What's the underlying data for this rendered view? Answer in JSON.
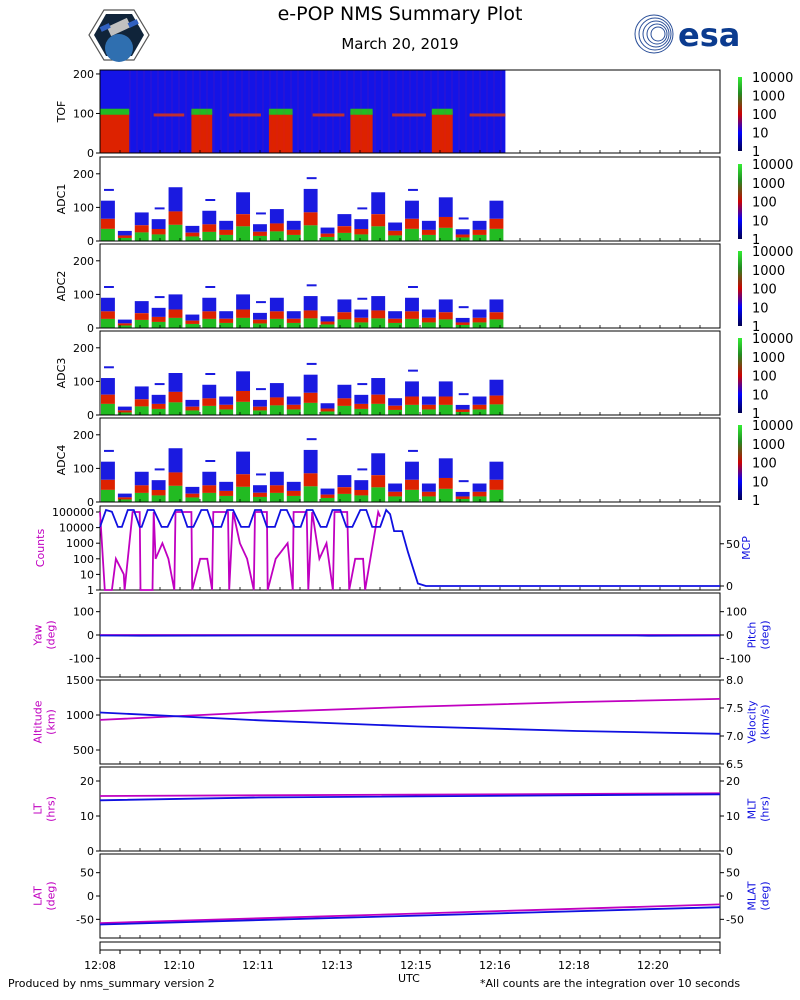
{
  "header": {
    "title": "e-POP NMS Summary Plot",
    "date": "March 20, 2019",
    "esa_logo_text": "esa"
  },
  "footer": {
    "left": "Produced by nms_summary version 2",
    "right": "*All counts are the integration over 10 seconds",
    "xlabel": "UTC"
  },
  "colors": {
    "magenta": "#c000c0",
    "blue": "#1010e0",
    "spectro_bg": "#1414e6",
    "spectro_red": "#dd2200",
    "spectro_green": "#22bb22"
  },
  "chart_data": [
    {
      "type": "heatmap",
      "ylabel": "TOF",
      "ylim": [
        0,
        210
      ],
      "yticks": [
        0,
        100,
        200
      ],
      "colorbar": {
        "ticks": [
          "10000",
          "1000",
          "100",
          "10",
          "1"
        ]
      }
    },
    {
      "type": "heatmap",
      "ylabel": "ADC1",
      "ylim": [
        0,
        250
      ],
      "yticks": [
        0,
        100,
        200
      ],
      "bar_tops": [
        120,
        30,
        85,
        65,
        160,
        45,
        90,
        60,
        145,
        50,
        95,
        60,
        155,
        40,
        80,
        65,
        145,
        55,
        120,
        60,
        130,
        35,
        60,
        120
      ],
      "colorbar": {
        "ticks": [
          "10000",
          "1000",
          "100",
          "10",
          "1"
        ]
      }
    },
    {
      "type": "heatmap",
      "ylabel": "ADC2",
      "ylim": [
        0,
        250
      ],
      "yticks": [
        0,
        100,
        200
      ],
      "bar_tops": [
        90,
        25,
        80,
        60,
        100,
        40,
        90,
        50,
        100,
        45,
        90,
        50,
        95,
        35,
        85,
        55,
        95,
        50,
        90,
        55,
        85,
        30,
        55,
        85
      ],
      "colorbar": {
        "ticks": [
          "10000",
          "1000",
          "100",
          "10",
          "1"
        ]
      }
    },
    {
      "type": "heatmap",
      "ylabel": "ADC3",
      "ylim": [
        0,
        250
      ],
      "yticks": [
        0,
        100,
        200
      ],
      "bar_tops": [
        110,
        25,
        85,
        60,
        125,
        45,
        90,
        55,
        130,
        45,
        95,
        55,
        120,
        35,
        90,
        60,
        110,
        50,
        100,
        55,
        100,
        30,
        55,
        105
      ],
      "colorbar": {
        "ticks": [
          "10000",
          "1000",
          "100",
          "10",
          "1"
        ]
      }
    },
    {
      "type": "heatmap",
      "ylabel": "ADC4",
      "ylim": [
        0,
        250
      ],
      "yticks": [
        0,
        100,
        200
      ],
      "bar_tops": [
        120,
        25,
        90,
        65,
        160,
        45,
        90,
        60,
        150,
        50,
        90,
        60,
        155,
        40,
        80,
        65,
        145,
        55,
        120,
        55,
        130,
        30,
        55,
        120
      ],
      "colorbar": {
        "ticks": [
          "10000",
          "1000",
          "100",
          "10",
          "1"
        ]
      }
    },
    {
      "type": "line",
      "ylabel": "Counts",
      "y2label": "MCP",
      "yticks": [
        "1",
        "10",
        "100",
        "1000",
        "10000",
        "100000"
      ],
      "y2ticks": [
        "0",
        "50"
      ],
      "series": [
        {
          "name": "Counts",
          "color": "magenta",
          "x": [
            0,
            0.12,
            0.3,
            0.4,
            0.6,
            0.62,
            0.82,
            1.0,
            1.02,
            1.32,
            1.35,
            1.4,
            1.57,
            1.72,
            1.87,
            1.9,
            2.3,
            2.32,
            2.52,
            2.7,
            2.82,
            2.85,
            3.22,
            3.25,
            3.35,
            3.52,
            3.7,
            3.87,
            3.9,
            4.2,
            4.22,
            4.42,
            4.72,
            4.85,
            4.87,
            5.2,
            5.24,
            5.34,
            5.52,
            5.7,
            5.86,
            5.9,
            6.22,
            6.27,
            6.42,
            6.62,
            6.67,
            7.0,
            7.05
          ],
          "y": [
            100000,
            1,
            1,
            100,
            10,
            1,
            100000,
            100000,
            1,
            1,
            100000,
            100,
            1000,
            100,
            1,
            100000,
            100000,
            1,
            100,
            100,
            1,
            100000,
            100000,
            1,
            100000,
            1000,
            100,
            1,
            100000,
            100000,
            1,
            100,
            1000,
            1,
            100000,
            100000,
            1,
            100000,
            100,
            1000,
            1,
            100000,
            100000,
            1,
            100,
            100,
            1,
            100000,
            50000
          ]
        },
        {
          "name": "MCP",
          "color": "blue",
          "x": [
            0,
            0.15,
            0.3,
            0.45,
            0.55,
            0.7,
            0.85,
            1.0,
            1.05,
            1.2,
            1.35,
            1.55,
            1.7,
            1.9,
            2.05,
            2.2,
            2.35,
            2.55,
            2.7,
            2.85,
            3.05,
            3.2,
            3.35,
            3.55,
            3.75,
            3.9,
            4.05,
            4.2,
            4.4,
            4.55,
            4.7,
            4.9,
            5.05,
            5.2,
            5.35,
            5.55,
            5.7,
            5.85,
            6.05,
            6.2,
            6.35,
            6.55,
            6.7,
            6.85,
            7.05,
            7.2,
            7.3,
            7.4,
            7.48,
            7.6,
            7.75,
            8.0,
            8.2,
            8.35,
            9,
            10,
            11,
            12,
            13,
            14,
            15,
            15.6
          ],
          "y": [
            70,
            90,
            88,
            70,
            70,
            90,
            90,
            70,
            70,
            90,
            90,
            70,
            70,
            90,
            90,
            70,
            70,
            90,
            90,
            70,
            70,
            90,
            90,
            70,
            70,
            90,
            90,
            70,
            70,
            90,
            90,
            70,
            70,
            90,
            90,
            70,
            70,
            90,
            90,
            70,
            70,
            90,
            90,
            70,
            70,
            90,
            85,
            65,
            65,
            65,
            40,
            3,
            0,
            0,
            0,
            0,
            0,
            0,
            0,
            0,
            0,
            0
          ]
        }
      ]
    },
    {
      "type": "line",
      "ylabel": "Yaw\n(deg)",
      "y2label": "Pitch\n(deg)",
      "ylim": [
        -180,
        180
      ],
      "yticks": [
        -100,
        0,
        100
      ],
      "y2ticks": [
        -100,
        0,
        100
      ],
      "series": [
        {
          "name": "Yaw",
          "color": "magenta",
          "x": [
            0,
            15.6
          ],
          "y": [
            0,
            0
          ]
        },
        {
          "name": "Pitch",
          "color": "blue",
          "x": [
            0,
            1,
            4,
            8,
            12,
            13.5,
            13.8,
            15.6
          ],
          "y": [
            -2,
            -3,
            -2,
            -2,
            -2,
            -2,
            -3,
            -2
          ]
        }
      ]
    },
    {
      "type": "line",
      "ylabel": "Altitude\n(km)",
      "y2label": "Velocity\n(km/s)",
      "ylim": [
        300,
        1500
      ],
      "yticks": [
        500,
        1000,
        1500
      ],
      "y2lim": [
        6.5,
        8.0
      ],
      "y2ticks": [
        "6.5",
        "7.0",
        "7.5",
        "8.0"
      ],
      "series": [
        {
          "name": "Altitude",
          "color": "magenta",
          "x": [
            0,
            4,
            8,
            12,
            15.6
          ],
          "y": [
            930,
            1040,
            1120,
            1185,
            1230
          ]
        },
        {
          "name": "Velocity",
          "color": "blue",
          "x": [
            0,
            4,
            8,
            12,
            15.6
          ],
          "y": [
            7.42,
            7.28,
            7.17,
            7.09,
            7.04
          ]
        }
      ]
    },
    {
      "type": "line",
      "ylabel": "LT\n(hrs)",
      "y2label": "MLT\n(hrs)",
      "ylim": [
        0,
        24
      ],
      "yticks": [
        0,
        10,
        20
      ],
      "y2ticks": [
        0,
        10,
        20
      ],
      "series": [
        {
          "name": "LT",
          "color": "magenta",
          "x": [
            0,
            15.6
          ],
          "y": [
            15.7,
            16.5
          ]
        },
        {
          "name": "MLT",
          "color": "blue",
          "x": [
            0,
            4,
            15.6
          ],
          "y": [
            14.5,
            15.3,
            16.2
          ]
        }
      ]
    },
    {
      "type": "line",
      "ylabel": "LAT\n(deg)",
      "y2label": "MLAT\n(deg)",
      "ylim": [
        -90,
        90
      ],
      "yticks": [
        -50,
        0,
        50
      ],
      "y2ticks": [
        -50,
        0,
        50
      ],
      "series": [
        {
          "name": "LAT",
          "color": "magenta",
          "x": [
            0,
            15.6
          ],
          "y": [
            -58,
            -18
          ]
        },
        {
          "name": "MLAT",
          "color": "blue",
          "x": [
            0,
            15.6
          ],
          "y": [
            -61,
            -24
          ]
        }
      ]
    }
  ],
  "x_axis": {
    "label": "UTC",
    "xlim": [
      0,
      15.6
    ],
    "tick_labels": [
      "12:08",
      "12:10",
      "12:11",
      "12:13",
      "12:15",
      "12:16",
      "12:18",
      "12:20"
    ],
    "data_end": 10.2
  }
}
